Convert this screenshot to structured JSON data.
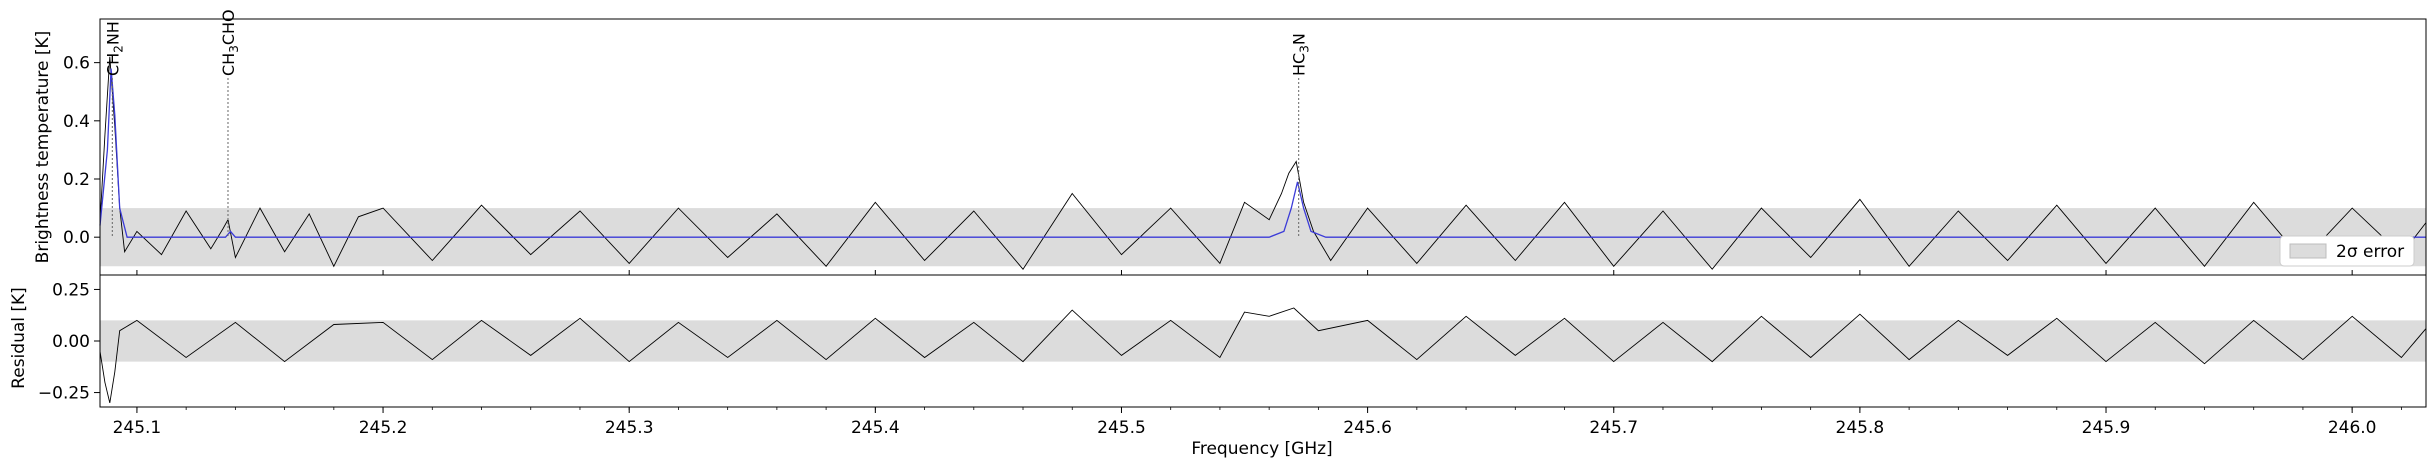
{
  "chart_data": [
    {
      "type": "line",
      "panel": "spectrum",
      "xlabel": "",
      "ylabel": "Brightness temperature [K]",
      "xlim": [
        245.085,
        246.03
      ],
      "ylim": [
        -0.13,
        0.75
      ],
      "yticks": [
        0.0,
        0.2,
        0.4,
        0.6
      ],
      "ytick_labels": [
        "0.0",
        "0.2",
        "0.4",
        "0.6"
      ],
      "error_band": [
        -0.1,
        0.1
      ],
      "legend": {
        "placement": "lower-right",
        "label": "2σ error"
      },
      "series": [
        {
          "kind": "observed",
          "color": "#000000",
          "x": [
            245.085,
            245.087,
            245.089,
            245.091,
            245.093,
            245.095,
            245.1,
            245.11,
            245.12,
            245.13,
            245.135,
            245.137,
            245.14,
            245.15,
            245.16,
            245.17,
            245.18,
            245.19,
            245.2,
            245.22,
            245.24,
            245.26,
            245.28,
            245.3,
            245.32,
            245.34,
            245.36,
            245.38,
            245.4,
            245.42,
            245.44,
            245.46,
            245.48,
            245.5,
            245.52,
            245.54,
            245.55,
            245.56,
            245.565,
            245.568,
            245.571,
            245.574,
            245.578,
            245.585,
            245.6,
            245.62,
            245.64,
            245.66,
            245.68,
            245.7,
            245.72,
            245.74,
            245.76,
            245.78,
            245.8,
            245.82,
            245.84,
            245.86,
            245.88,
            245.9,
            245.92,
            245.94,
            245.96,
            245.98,
            246.0,
            246.02,
            246.03
          ],
          "y": [
            0.05,
            0.35,
            0.62,
            0.38,
            0.1,
            -0.05,
            0.02,
            -0.06,
            0.09,
            -0.04,
            0.03,
            0.06,
            -0.07,
            0.1,
            -0.05,
            0.08,
            -0.1,
            0.07,
            0.1,
            -0.08,
            0.11,
            -0.06,
            0.09,
            -0.09,
            0.1,
            -0.07,
            0.08,
            -0.1,
            0.12,
            -0.08,
            0.09,
            -0.11,
            0.15,
            -0.06,
            0.1,
            -0.09,
            0.12,
            0.06,
            0.15,
            0.22,
            0.26,
            0.12,
            0.02,
            -0.08,
            0.1,
            -0.09,
            0.11,
            -0.08,
            0.12,
            -0.1,
            0.09,
            -0.11,
            0.1,
            -0.07,
            0.13,
            -0.1,
            0.09,
            -0.08,
            0.11,
            -0.09,
            0.1,
            -0.1,
            0.12,
            -0.08,
            0.1,
            -0.06,
            0.05
          ]
        },
        {
          "kind": "model",
          "color": "#3b3bd8",
          "x": [
            245.085,
            245.088,
            245.0895,
            245.091,
            245.093,
            245.096,
            245.136,
            245.138,
            245.14,
            245.56,
            245.566,
            245.569,
            245.5715,
            245.574,
            245.577,
            245.583,
            246.03
          ],
          "y": [
            0.04,
            0.3,
            0.58,
            0.42,
            0.1,
            0.0,
            0.0,
            0.02,
            0.0,
            0.0,
            0.02,
            0.1,
            0.19,
            0.1,
            0.02,
            0.0,
            0.0
          ]
        }
      ],
      "annotations": [
        {
          "label_base": "CH",
          "label_sub": "2",
          "label_rest": "NH",
          "x": 245.09
        },
        {
          "label_base": "CH",
          "label_sub": "3",
          "label_rest": "CHO",
          "x": 245.137
        },
        {
          "label_base": "HC",
          "label_sub": "3",
          "label_rest": "N",
          "x": 245.572
        }
      ]
    },
    {
      "type": "line",
      "panel": "residual",
      "xlabel": "Frequency [GHz]",
      "ylabel": "Residual [K]",
      "xlim": [
        245.085,
        246.03
      ],
      "ylim": [
        -0.32,
        0.32
      ],
      "xticks": [
        245.1,
        245.2,
        245.3,
        245.4,
        245.5,
        245.6,
        245.7,
        245.8,
        245.9,
        246.0
      ],
      "xtick_labels": [
        "245.1",
        "245.2",
        "245.3",
        "245.4",
        "245.5",
        "245.6",
        "245.7",
        "245.8",
        "245.9",
        "246.0"
      ],
      "yticks": [
        -0.25,
        0.0,
        0.25
      ],
      "ytick_labels": [
        "−0.25",
        "0.00",
        "0.25"
      ],
      "error_band": [
        -0.1,
        0.1
      ],
      "series": [
        {
          "kind": "residual",
          "color": "#000000",
          "x": [
            245.085,
            245.087,
            245.089,
            245.091,
            245.093,
            245.1,
            245.12,
            245.14,
            245.16,
            245.18,
            245.2,
            245.22,
            245.24,
            245.26,
            245.28,
            245.3,
            245.32,
            245.34,
            245.36,
            245.38,
            245.4,
            245.42,
            245.44,
            245.46,
            245.48,
            245.5,
            245.52,
            245.54,
            245.55,
            245.56,
            245.57,
            245.58,
            245.6,
            245.62,
            245.64,
            245.66,
            245.68,
            245.7,
            245.72,
            245.74,
            245.76,
            245.78,
            245.8,
            245.82,
            245.84,
            245.86,
            245.88,
            245.9,
            245.92,
            245.94,
            245.96,
            245.98,
            246.0,
            246.02,
            246.03
          ],
          "y": [
            -0.05,
            -0.2,
            -0.3,
            -0.15,
            0.05,
            0.1,
            -0.08,
            0.09,
            -0.1,
            0.08,
            0.09,
            -0.09,
            0.1,
            -0.07,
            0.11,
            -0.1,
            0.09,
            -0.08,
            0.1,
            -0.09,
            0.11,
            -0.08,
            0.09,
            -0.1,
            0.15,
            -0.07,
            0.1,
            -0.08,
            0.14,
            0.12,
            0.16,
            0.05,
            0.1,
            -0.09,
            0.12,
            -0.07,
            0.11,
            -0.1,
            0.09,
            -0.1,
            0.12,
            -0.08,
            0.13,
            -0.09,
            0.1,
            -0.07,
            0.11,
            -0.1,
            0.09,
            -0.11,
            0.1,
            -0.09,
            0.12,
            -0.08,
            0.06
          ]
        }
      ]
    }
  ],
  "legend_label": "2σ error",
  "colors": {
    "band": "#dcdcdc",
    "observed": "#000000",
    "model": "#3b3bd8"
  }
}
